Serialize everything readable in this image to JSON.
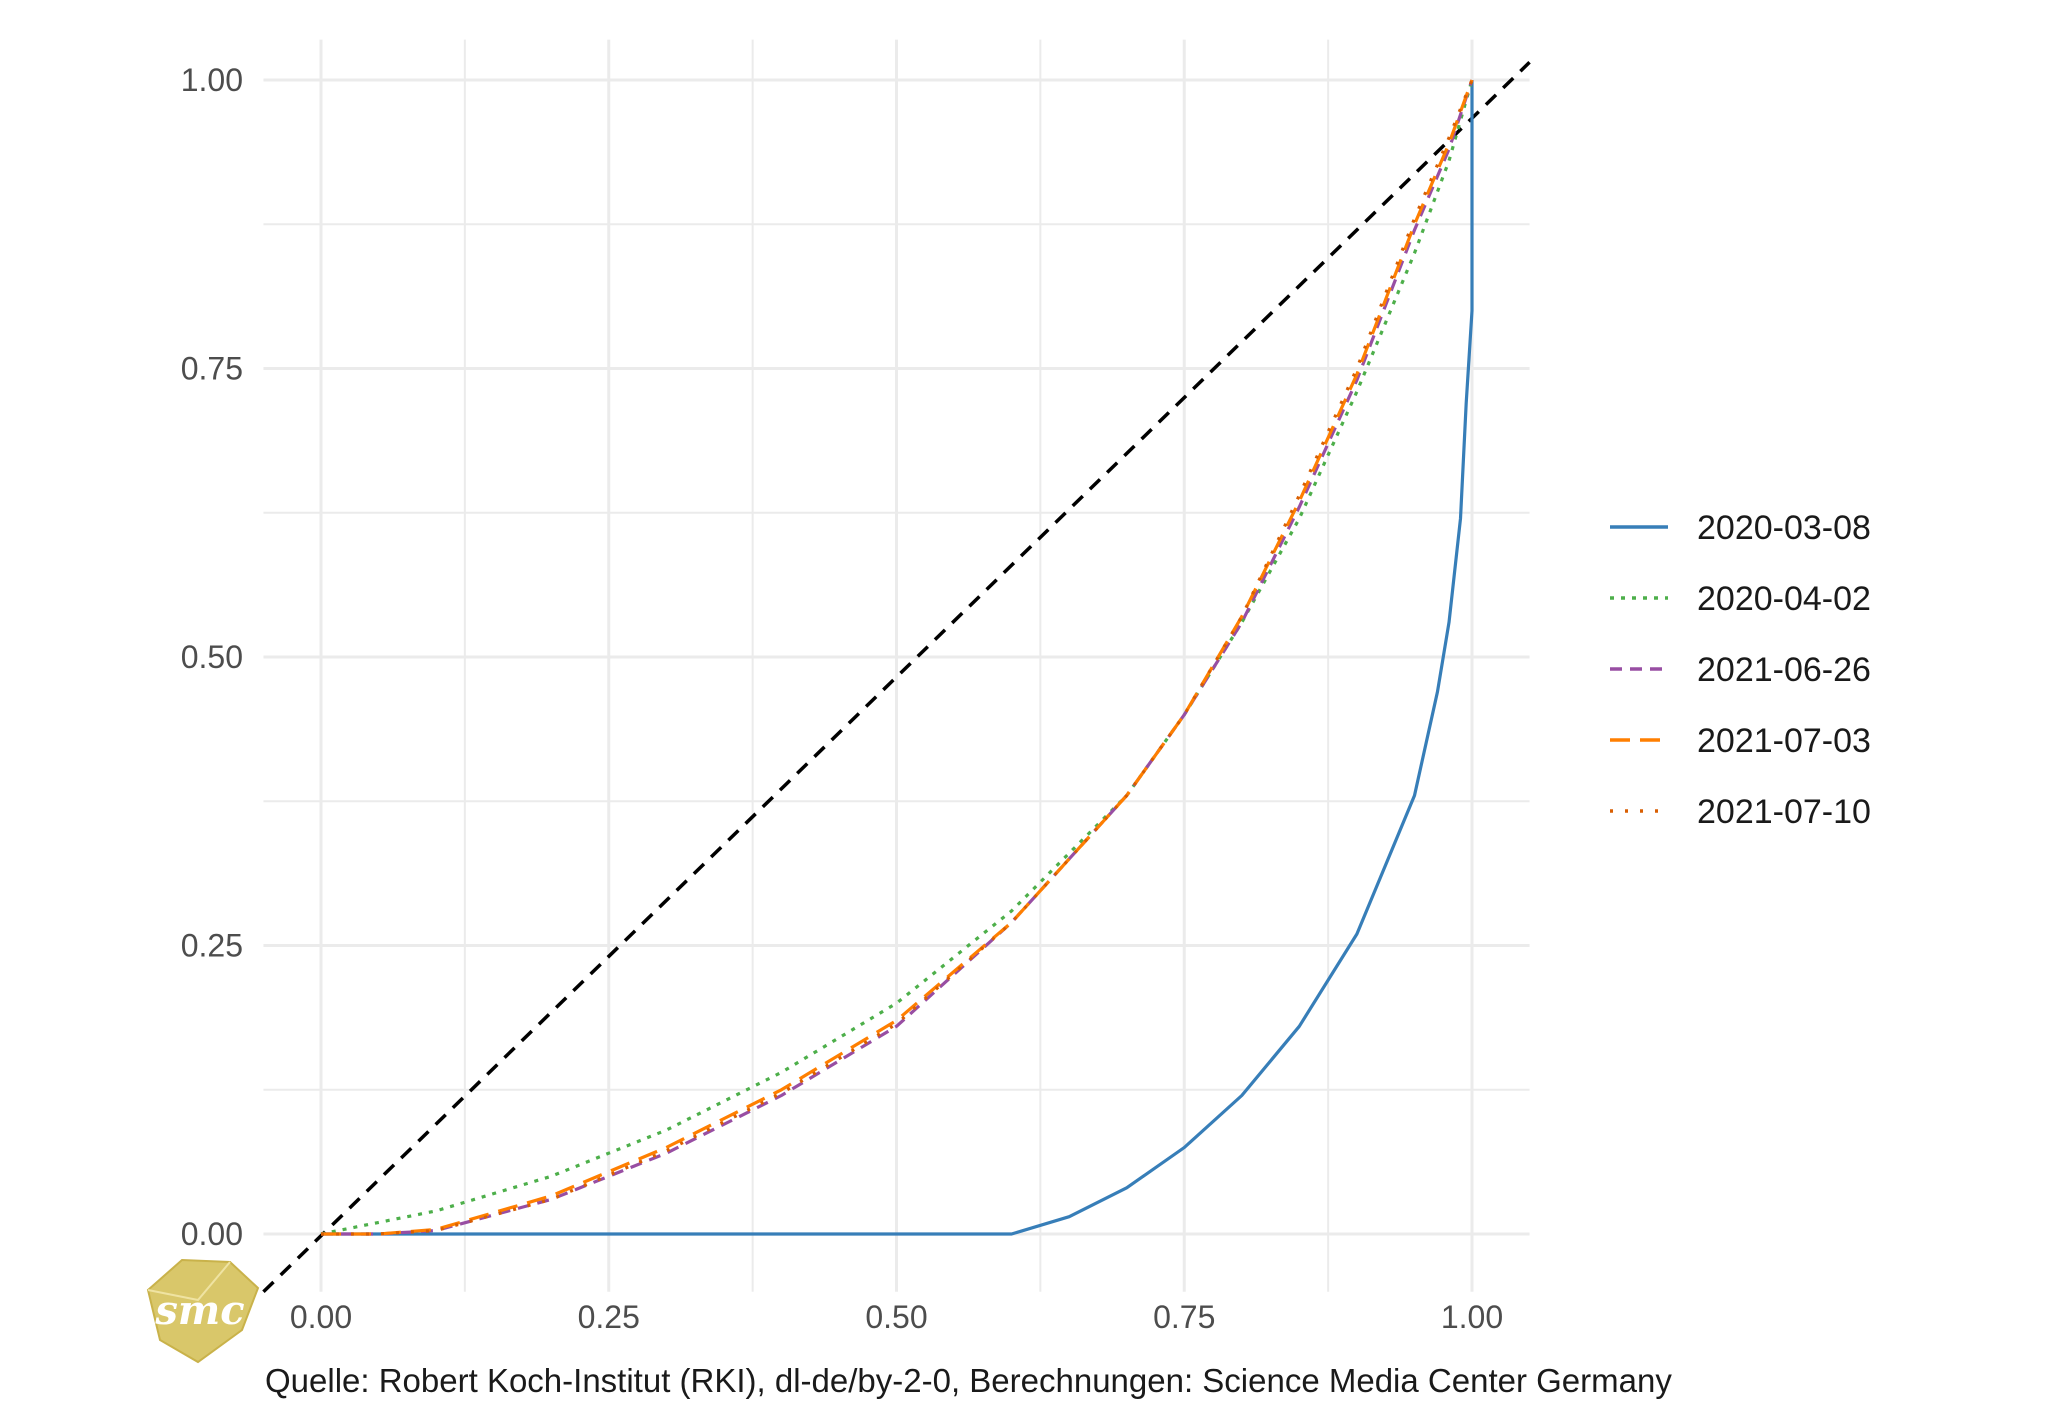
{
  "chart_data": {
    "type": "line",
    "title": "",
    "xlabel": "",
    "ylabel": "",
    "xlim": [
      -0.05,
      1.05
    ],
    "ylim": [
      -0.05,
      1.0
    ],
    "grid": true,
    "legend_position": "right",
    "x_ticks": [
      "0.00",
      "0.25",
      "0.50",
      "0.75",
      "1.00"
    ],
    "y_ticks": [
      "0.00",
      "0.25",
      "0.50",
      "0.75",
      "1.00"
    ],
    "reference_line": {
      "style": "dashed",
      "color": "#000000",
      "x": [
        -0.05,
        1.05
      ],
      "y": [
        -0.05,
        1.05
      ]
    },
    "series": [
      {
        "name": "2020-03-08",
        "color": "#377EB8",
        "dash": "solid",
        "x": [
          0,
          0.6,
          0.65,
          0.7,
          0.75,
          0.8,
          0.85,
          0.9,
          0.95,
          0.97,
          0.98,
          0.99,
          0.995,
          1.0,
          1.0
        ],
        "y": [
          0,
          0,
          0.015,
          0.04,
          0.075,
          0.12,
          0.18,
          0.26,
          0.38,
          0.47,
          0.53,
          0.62,
          0.72,
          0.8,
          1.0
        ]
      },
      {
        "name": "2020-04-02",
        "color": "#4DAF4A",
        "dash": "dotted",
        "x": [
          0,
          0.1,
          0.2,
          0.3,
          0.4,
          0.5,
          0.6,
          0.7,
          0.75,
          0.8,
          0.85,
          0.9,
          0.95,
          0.98,
          1.0
        ],
        "y": [
          0,
          0.02,
          0.05,
          0.09,
          0.14,
          0.2,
          0.28,
          0.38,
          0.45,
          0.53,
          0.62,
          0.73,
          0.85,
          0.93,
          1.0
        ]
      },
      {
        "name": "2021-06-26",
        "color": "#984EA3",
        "dash": "dashed",
        "x": [
          0,
          0.05,
          0.1,
          0.2,
          0.3,
          0.4,
          0.5,
          0.6,
          0.7,
          0.75,
          0.8,
          0.85,
          0.9,
          0.95,
          0.98,
          1.0
        ],
        "y": [
          0,
          0,
          0.003,
          0.03,
          0.07,
          0.12,
          0.18,
          0.27,
          0.38,
          0.45,
          0.53,
          0.63,
          0.74,
          0.87,
          0.94,
          1.0
        ]
      },
      {
        "name": "2021-07-03",
        "color": "#FF7F00",
        "dash": "longdash",
        "x": [
          0,
          0.05,
          0.1,
          0.2,
          0.3,
          0.4,
          0.5,
          0.6,
          0.7,
          0.75,
          0.8,
          0.85,
          0.9,
          0.95,
          0.98,
          1.0
        ],
        "y": [
          0,
          0,
          0.004,
          0.033,
          0.075,
          0.125,
          0.185,
          0.27,
          0.38,
          0.45,
          0.535,
          0.635,
          0.745,
          0.875,
          0.945,
          1.0
        ]
      },
      {
        "name": "2021-07-10",
        "color": "#D95F02",
        "dash": "dotted-sparse",
        "x": [
          0,
          0.05,
          0.1,
          0.2,
          0.3,
          0.4,
          0.5,
          0.6,
          0.7,
          0.75,
          0.8,
          0.85,
          0.9,
          0.95,
          0.98,
          1.0
        ],
        "y": [
          0,
          0,
          0.003,
          0.03,
          0.072,
          0.122,
          0.182,
          0.27,
          0.38,
          0.45,
          0.535,
          0.64,
          0.75,
          0.88,
          0.95,
          1.0
        ]
      }
    ],
    "caption": "Quelle: Robert Koch-Institut (RKI), dl-de/by-2-0, Berechnungen: Science Media Center Germany",
    "logo_text": "smc"
  }
}
